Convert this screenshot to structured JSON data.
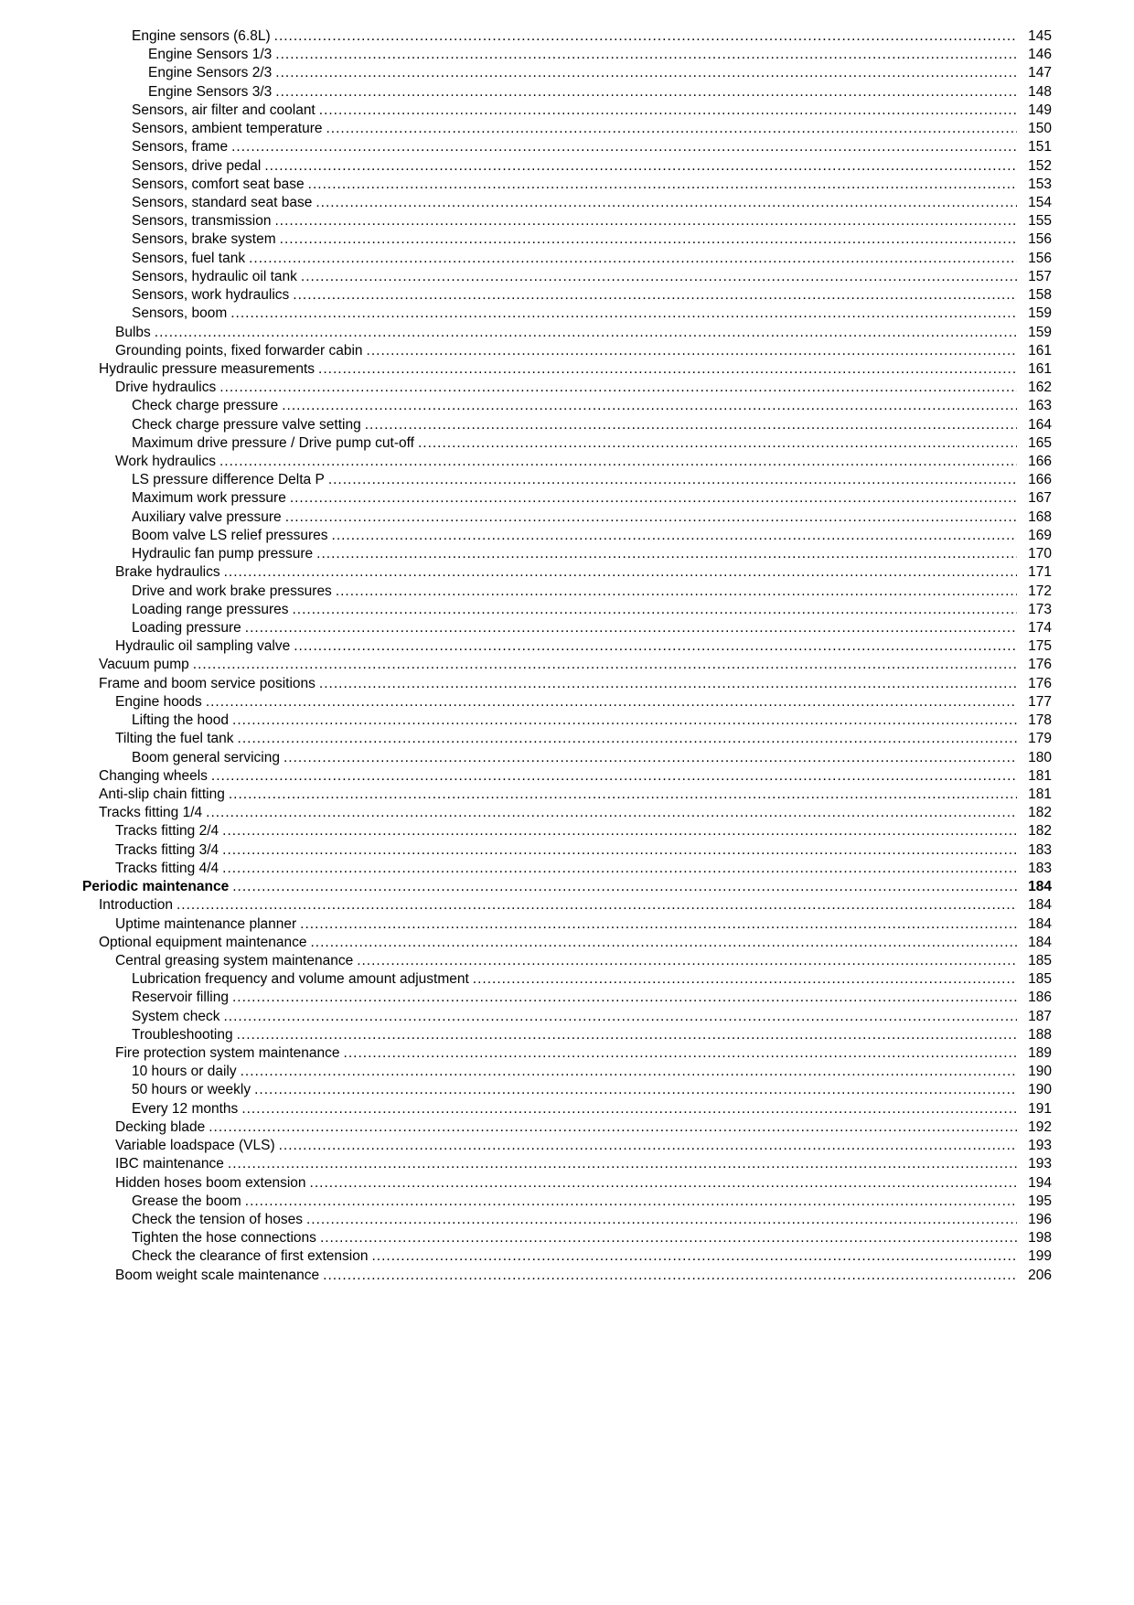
{
  "entries": [
    {
      "title": "Engine sensors (6.8L)",
      "page": "145",
      "indent": 3,
      "bold": false
    },
    {
      "title": "Engine Sensors 1/3",
      "page": "146",
      "indent": 4,
      "bold": false
    },
    {
      "title": "Engine Sensors 2/3",
      "page": "147",
      "indent": 4,
      "bold": false
    },
    {
      "title": "Engine Sensors 3/3",
      "page": "148",
      "indent": 4,
      "bold": false
    },
    {
      "title": "Sensors, air filter and coolant",
      "page": "149",
      "indent": 3,
      "bold": false
    },
    {
      "title": "Sensors, ambient temperature",
      "page": "150",
      "indent": 3,
      "bold": false
    },
    {
      "title": "Sensors, frame",
      "page": "151",
      "indent": 3,
      "bold": false
    },
    {
      "title": "Sensors, drive pedal",
      "page": "152",
      "indent": 3,
      "bold": false
    },
    {
      "title": "Sensors, comfort seat base",
      "page": "153",
      "indent": 3,
      "bold": false
    },
    {
      "title": "Sensors, standard seat base",
      "page": "154",
      "indent": 3,
      "bold": false
    },
    {
      "title": "Sensors, transmission",
      "page": "155",
      "indent": 3,
      "bold": false
    },
    {
      "title": "Sensors, brake system",
      "page": "156",
      "indent": 3,
      "bold": false
    },
    {
      "title": "Sensors, fuel tank",
      "page": "156",
      "indent": 3,
      "bold": false
    },
    {
      "title": "Sensors, hydraulic oil tank",
      "page": "157",
      "indent": 3,
      "bold": false
    },
    {
      "title": "Sensors, work hydraulics",
      "page": "158",
      "indent": 3,
      "bold": false
    },
    {
      "title": "Sensors, boom",
      "page": "159",
      "indent": 3,
      "bold": false
    },
    {
      "title": "Bulbs",
      "page": "159",
      "indent": 2,
      "bold": false
    },
    {
      "title": "Grounding points, fixed forwarder cabin",
      "page": "161",
      "indent": 2,
      "bold": false
    },
    {
      "title": "Hydraulic pressure measurements",
      "page": "161",
      "indent": 1,
      "bold": false
    },
    {
      "title": "Drive hydraulics",
      "page": "162",
      "indent": 2,
      "bold": false
    },
    {
      "title": "Check charge pressure",
      "page": "163",
      "indent": 3,
      "bold": false
    },
    {
      "title": "Check charge pressure valve setting",
      "page": "164",
      "indent": 3,
      "bold": false
    },
    {
      "title": "Maximum drive pressure / Drive pump cut-off",
      "page": "165",
      "indent": 3,
      "bold": false
    },
    {
      "title": "Work hydraulics",
      "page": "166",
      "indent": 2,
      "bold": false
    },
    {
      "title": "LS pressure difference Delta P",
      "page": "166",
      "indent": 3,
      "bold": false
    },
    {
      "title": "Maximum work pressure",
      "page": "167",
      "indent": 3,
      "bold": false
    },
    {
      "title": "Auxiliary valve pressure",
      "page": "168",
      "indent": 3,
      "bold": false
    },
    {
      "title": "Boom valve LS relief pressures",
      "page": "169",
      "indent": 3,
      "bold": false
    },
    {
      "title": "Hydraulic fan pump pressure",
      "page": "170",
      "indent": 3,
      "bold": false
    },
    {
      "title": "Brake hydraulics",
      "page": "171",
      "indent": 2,
      "bold": false
    },
    {
      "title": "Drive and work brake pressures",
      "page": "172",
      "indent": 3,
      "bold": false
    },
    {
      "title": "Loading range pressures",
      "page": "173",
      "indent": 3,
      "bold": false
    },
    {
      "title": "Loading pressure",
      "page": "174",
      "indent": 3,
      "bold": false
    },
    {
      "title": "Hydraulic oil sampling valve",
      "page": "175",
      "indent": 2,
      "bold": false
    },
    {
      "title": "Vacuum pump",
      "page": "176",
      "indent": 1,
      "bold": false
    },
    {
      "title": "Frame and boom service positions",
      "page": "176",
      "indent": 1,
      "bold": false
    },
    {
      "title": "Engine hoods",
      "page": "177",
      "indent": 2,
      "bold": false
    },
    {
      "title": "Lifting the hood",
      "page": "178",
      "indent": 3,
      "bold": false
    },
    {
      "title": "Tilting the fuel tank",
      "page": "179",
      "indent": 2,
      "bold": false
    },
    {
      "title": "Boom general servicing",
      "page": "180",
      "indent": 3,
      "bold": false
    },
    {
      "title": "Changing wheels",
      "page": "181",
      "indent": 1,
      "bold": false
    },
    {
      "title": "Anti-slip chain fitting",
      "page": "181",
      "indent": 1,
      "bold": false
    },
    {
      "title": "Tracks fitting 1/4",
      "page": "182",
      "indent": 1,
      "bold": false
    },
    {
      "title": "Tracks fitting 2/4",
      "page": "182",
      "indent": 2,
      "bold": false
    },
    {
      "title": "Tracks fitting 3/4",
      "page": "183",
      "indent": 2,
      "bold": false
    },
    {
      "title": "Tracks fitting 4/4",
      "page": "183",
      "indent": 2,
      "bold": false
    },
    {
      "title": "Periodic maintenance",
      "page": "184",
      "indent": 0,
      "bold": true
    },
    {
      "title": "Introduction",
      "page": "184",
      "indent": 1,
      "bold": false
    },
    {
      "title": "Uptime maintenance planner",
      "page": "184",
      "indent": 2,
      "bold": false
    },
    {
      "title": "Optional equipment maintenance",
      "page": "184",
      "indent": 1,
      "bold": false
    },
    {
      "title": "Central greasing system maintenance",
      "page": "185",
      "indent": 2,
      "bold": false
    },
    {
      "title": "Lubrication frequency and volume amount adjustment",
      "page": "185",
      "indent": 3,
      "bold": false
    },
    {
      "title": "Reservoir filling",
      "page": "186",
      "indent": 3,
      "bold": false
    },
    {
      "title": "System check",
      "page": "187",
      "indent": 3,
      "bold": false
    },
    {
      "title": "Troubleshooting",
      "page": "188",
      "indent": 3,
      "bold": false
    },
    {
      "title": "Fire protection system maintenance",
      "page": "189",
      "indent": 2,
      "bold": false
    },
    {
      "title": "10 hours or daily",
      "page": "190",
      "indent": 3,
      "bold": false
    },
    {
      "title": "50 hours or weekly",
      "page": "190",
      "indent": 3,
      "bold": false
    },
    {
      "title": "Every 12 months",
      "page": "191",
      "indent": 3,
      "bold": false
    },
    {
      "title": "Decking blade",
      "page": "192",
      "indent": 2,
      "bold": false
    },
    {
      "title": "Variable loadspace (VLS)",
      "page": "193",
      "indent": 2,
      "bold": false
    },
    {
      "title": "IBC maintenance",
      "page": "193",
      "indent": 2,
      "bold": false
    },
    {
      "title": "Hidden hoses boom extension",
      "page": "194",
      "indent": 2,
      "bold": false
    },
    {
      "title": "Grease the boom",
      "page": "195",
      "indent": 3,
      "bold": false
    },
    {
      "title": "Check the tension of hoses",
      "page": "196",
      "indent": 3,
      "bold": false
    },
    {
      "title": "Tighten the hose connections",
      "page": "198",
      "indent": 3,
      "bold": false
    },
    {
      "title": "Check the clearance of first extension",
      "page": "199",
      "indent": 3,
      "bold": false
    },
    {
      "title": "Boom weight scale maintenance",
      "page": "206",
      "indent": 2,
      "bold": false
    }
  ]
}
